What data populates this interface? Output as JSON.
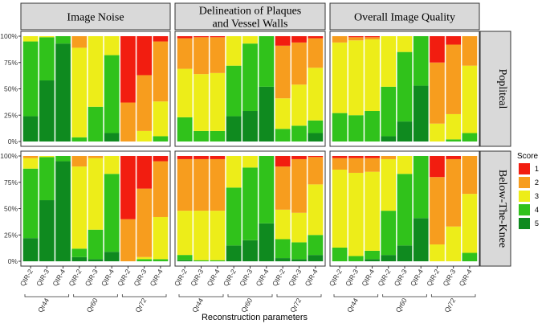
{
  "chart_data": {
    "type": "bar",
    "stacked": true,
    "normalized": true,
    "xlabel": "Reconstruction parameters",
    "ylabel": "",
    "ylim": [
      0,
      1
    ],
    "y_ticks": [
      "0%",
      "25%",
      "50%",
      "75%",
      "100%"
    ],
    "columns": [
      "Image Noise",
      "Delineation of Plaques and Vessel Walls",
      "Overall Image Quality"
    ],
    "column_lines": [
      [
        "Image Noise"
      ],
      [
        "Delineation of Plaques",
        "and Vessel Walls"
      ],
      [
        "Overall Image Quality"
      ]
    ],
    "rows": [
      "Popliteal",
      "Below-The-Knee"
    ],
    "categories": [
      "QIR-2",
      "QIR-3",
      "QIR-4",
      "QIR-2",
      "QIR-3",
      "QIR-4",
      "QIR-2",
      "QIR-3",
      "QIR-4"
    ],
    "groups": [
      "Qr44",
      "Qr60",
      "Qr72"
    ],
    "legend": {
      "title": "Score",
      "entries": [
        "1",
        "2",
        "3",
        "4",
        "5"
      ],
      "colors": [
        "#f21d10",
        "#f79d1e",
        "#eded19",
        "#30c21b",
        "#0f8a1f"
      ]
    },
    "series_order_bottom_to_top": [
      "5",
      "4",
      "3",
      "2",
      "1"
    ],
    "panels": [
      {
        "row": "Popliteal",
        "column": "Image Noise",
        "bars": [
          {
            "5": 0.24,
            "4": 0.71,
            "3": 0.05,
            "2": 0.0,
            "1": 0.0
          },
          {
            "5": 0.58,
            "4": 0.41,
            "3": 0.01,
            "2": 0.0,
            "1": 0.0
          },
          {
            "5": 0.93,
            "4": 0.07,
            "3": 0.0,
            "2": 0.0,
            "1": 0.0
          },
          {
            "5": 0.0,
            "4": 0.04,
            "3": 0.85,
            "2": 0.11,
            "1": 0.0
          },
          {
            "5": 0.0,
            "4": 0.33,
            "3": 0.67,
            "2": 0.0,
            "1": 0.0
          },
          {
            "5": 0.08,
            "4": 0.74,
            "3": 0.18,
            "2": 0.0,
            "1": 0.0
          },
          {
            "5": 0.0,
            "4": 0.0,
            "3": 0.0,
            "2": 0.37,
            "1": 0.63
          },
          {
            "5": 0.0,
            "4": 0.0,
            "3": 0.1,
            "2": 0.53,
            "1": 0.37
          },
          {
            "5": 0.0,
            "4": 0.05,
            "3": 0.33,
            "2": 0.57,
            "1": 0.05
          }
        ]
      },
      {
        "row": "Popliteal",
        "column": "Delineation of Plaques and Vessel Walls",
        "bars": [
          {
            "5": 0.0,
            "4": 0.23,
            "3": 0.46,
            "2": 0.29,
            "1": 0.02
          },
          {
            "5": 0.0,
            "4": 0.1,
            "3": 0.54,
            "2": 0.35,
            "1": 0.01
          },
          {
            "5": 0.0,
            "4": 0.1,
            "3": 0.55,
            "2": 0.34,
            "1": 0.01
          },
          {
            "5": 0.24,
            "4": 0.48,
            "3": 0.28,
            "2": 0.0,
            "1": 0.0
          },
          {
            "5": 0.29,
            "4": 0.64,
            "3": 0.07,
            "2": 0.0,
            "1": 0.0
          },
          {
            "5": 0.52,
            "4": 0.48,
            "3": 0.0,
            "2": 0.0,
            "1": 0.0
          },
          {
            "5": 0.0,
            "4": 0.12,
            "3": 0.29,
            "2": 0.5,
            "1": 0.09
          },
          {
            "5": 0.0,
            "4": 0.15,
            "3": 0.39,
            "2": 0.4,
            "1": 0.06
          },
          {
            "5": 0.08,
            "4": 0.12,
            "3": 0.5,
            "2": 0.28,
            "1": 0.02
          }
        ]
      },
      {
        "row": "Popliteal",
        "column": "Overall Image Quality",
        "bars": [
          {
            "5": 0.0,
            "4": 0.27,
            "3": 0.67,
            "2": 0.06,
            "1": 0.0
          },
          {
            "5": 0.0,
            "4": 0.25,
            "3": 0.71,
            "2": 0.03,
            "1": 0.01
          },
          {
            "5": 0.0,
            "4": 0.29,
            "3": 0.68,
            "2": 0.02,
            "1": 0.01
          },
          {
            "5": 0.05,
            "4": 0.47,
            "3": 0.48,
            "2": 0.0,
            "1": 0.0
          },
          {
            "5": 0.19,
            "4": 0.66,
            "3": 0.15,
            "2": 0.0,
            "1": 0.0
          },
          {
            "5": 0.53,
            "4": 0.47,
            "3": 0.0,
            "2": 0.0,
            "1": 0.0
          },
          {
            "5": 0.0,
            "4": 0.0,
            "3": 0.17,
            "2": 0.58,
            "1": 0.25
          },
          {
            "5": 0.0,
            "4": 0.02,
            "3": 0.24,
            "2": 0.66,
            "1": 0.08
          },
          {
            "5": 0.0,
            "4": 0.08,
            "3": 0.64,
            "2": 0.28,
            "1": 0.0
          }
        ]
      },
      {
        "row": "Below-The-Knee",
        "column": "Image Noise",
        "bars": [
          {
            "5": 0.22,
            "4": 0.66,
            "3": 0.1,
            "2": 0.02,
            "1": 0.0
          },
          {
            "5": 0.58,
            "4": 0.41,
            "3": 0.01,
            "2": 0.0,
            "1": 0.0
          },
          {
            "5": 0.95,
            "4": 0.05,
            "3": 0.0,
            "2": 0.0,
            "1": 0.0
          },
          {
            "5": 0.04,
            "4": 0.08,
            "3": 0.78,
            "2": 0.1,
            "1": 0.0
          },
          {
            "5": 0.02,
            "4": 0.28,
            "3": 0.68,
            "2": 0.02,
            "1": 0.0
          },
          {
            "5": 0.09,
            "4": 0.74,
            "3": 0.17,
            "2": 0.0,
            "1": 0.0
          },
          {
            "5": 0.0,
            "4": 0.0,
            "3": 0.0,
            "2": 0.4,
            "1": 0.6
          },
          {
            "5": 0.0,
            "4": 0.02,
            "3": 0.02,
            "2": 0.65,
            "1": 0.31
          },
          {
            "5": 0.0,
            "4": 0.02,
            "3": 0.4,
            "2": 0.53,
            "1": 0.05
          }
        ]
      },
      {
        "row": "Below-The-Knee",
        "column": "Delineation of Plaques and Vessel Walls",
        "bars": [
          {
            "5": 0.01,
            "4": 0.05,
            "3": 0.42,
            "2": 0.49,
            "1": 0.03
          },
          {
            "5": 0.0,
            "4": 0.01,
            "3": 0.47,
            "2": 0.49,
            "1": 0.03
          },
          {
            "5": 0.0,
            "4": 0.01,
            "3": 0.47,
            "2": 0.49,
            "1": 0.03
          },
          {
            "5": 0.15,
            "4": 0.55,
            "3": 0.3,
            "2": 0.0,
            "1": 0.0
          },
          {
            "5": 0.2,
            "4": 0.69,
            "3": 0.11,
            "2": 0.0,
            "1": 0.0
          },
          {
            "5": 0.36,
            "4": 0.64,
            "3": 0.0,
            "2": 0.0,
            "1": 0.0
          },
          {
            "5": 0.03,
            "4": 0.18,
            "3": 0.28,
            "2": 0.41,
            "1": 0.1
          },
          {
            "5": 0.02,
            "4": 0.16,
            "3": 0.28,
            "2": 0.51,
            "1": 0.03
          },
          {
            "5": 0.06,
            "4": 0.19,
            "3": 0.48,
            "2": 0.26,
            "1": 0.01
          }
        ]
      },
      {
        "row": "Below-The-Knee",
        "column": "Overall Image Quality",
        "bars": [
          {
            "5": 0.0,
            "4": 0.13,
            "3": 0.74,
            "2": 0.11,
            "1": 0.02
          },
          {
            "5": 0.0,
            "4": 0.05,
            "3": 0.79,
            "2": 0.14,
            "1": 0.02
          },
          {
            "5": 0.02,
            "4": 0.08,
            "3": 0.75,
            "2": 0.13,
            "1": 0.02
          },
          {
            "5": 0.06,
            "4": 0.42,
            "3": 0.49,
            "2": 0.03,
            "1": 0.0
          },
          {
            "5": 0.15,
            "4": 0.68,
            "3": 0.17,
            "2": 0.0,
            "1": 0.0
          },
          {
            "5": 0.41,
            "4": 0.59,
            "3": 0.0,
            "2": 0.0,
            "1": 0.0
          },
          {
            "5": 0.0,
            "4": 0.0,
            "3": 0.16,
            "2": 0.64,
            "1": 0.2
          },
          {
            "5": 0.0,
            "4": 0.0,
            "3": 0.33,
            "2": 0.64,
            "1": 0.03
          },
          {
            "5": 0.0,
            "4": 0.08,
            "3": 0.56,
            "2": 0.36,
            "1": 0.0
          }
        ]
      }
    ]
  }
}
